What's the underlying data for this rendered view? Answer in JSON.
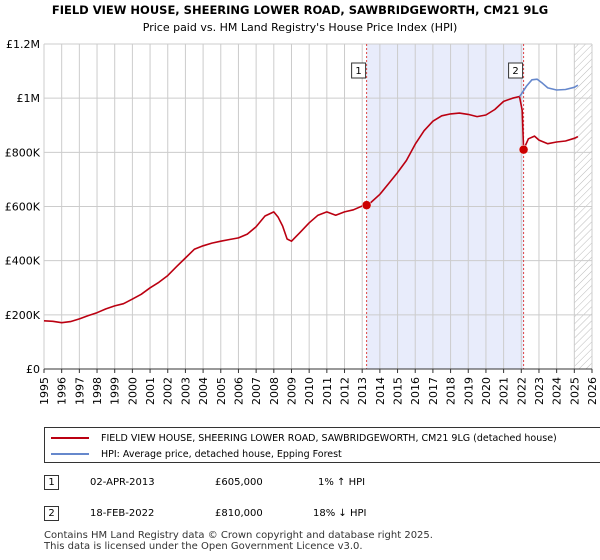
{
  "chart_data": {
    "type": "line",
    "title": "FIELD VIEW HOUSE, SHEERING LOWER ROAD, SAWBRIDGEWORTH, CM21 9LG",
    "subtitle": "Price paid vs. HM Land Registry's House Price Index (HPI)",
    "xlabel": "",
    "ylabel": "",
    "xlim": [
      1995,
      2026
    ],
    "ylim": [
      0,
      1200000
    ],
    "x_ticks": [
      1995,
      1996,
      1997,
      1998,
      1999,
      2000,
      2001,
      2002,
      2003,
      2004,
      2005,
      2006,
      2007,
      2008,
      2009,
      2010,
      2011,
      2012,
      2013,
      2014,
      2015,
      2016,
      2017,
      2018,
      2019,
      2020,
      2021,
      2022,
      2023,
      2024,
      2025,
      2026
    ],
    "y_ticks": [
      {
        "value": 0,
        "label": "£0"
      },
      {
        "value": 200000,
        "label": "£200K"
      },
      {
        "value": 400000,
        "label": "£400K"
      },
      {
        "value": 600000,
        "label": "£600K"
      },
      {
        "value": 800000,
        "label": "£800K"
      },
      {
        "value": 1000000,
        "label": "£1M"
      },
      {
        "value": 1200000,
        "label": "£1.2M"
      }
    ],
    "shaded_region": {
      "from": 2013.25,
      "to": 2022.13,
      "color": "#e8ecfb"
    },
    "future_hatch_from": 2025.0,
    "series": [
      {
        "name": "FIELD VIEW HOUSE, SHEERING LOWER ROAD, SAWBRIDGEWORTH, CM21 9LG (detached house)",
        "color": "#bb0011",
        "points": [
          [
            1995.0,
            178000
          ],
          [
            1995.5,
            176000
          ],
          [
            1996.0,
            171000
          ],
          [
            1996.5,
            175000
          ],
          [
            1997.0,
            185000
          ],
          [
            1997.5,
            197000
          ],
          [
            1998.0,
            208000
          ],
          [
            1998.5,
            222000
          ],
          [
            1999.0,
            233000
          ],
          [
            1999.5,
            241000
          ],
          [
            2000.0,
            258000
          ],
          [
            2000.5,
            276000
          ],
          [
            2001.0,
            300000
          ],
          [
            2001.5,
            320000
          ],
          [
            2002.0,
            345000
          ],
          [
            2002.5,
            378000
          ],
          [
            2003.0,
            410000
          ],
          [
            2003.5,
            442000
          ],
          [
            2004.0,
            455000
          ],
          [
            2004.5,
            465000
          ],
          [
            2005.0,
            472000
          ],
          [
            2005.5,
            478000
          ],
          [
            2006.0,
            484000
          ],
          [
            2006.5,
            498000
          ],
          [
            2007.0,
            525000
          ],
          [
            2007.5,
            565000
          ],
          [
            2008.0,
            580000
          ],
          [
            2008.25,
            560000
          ],
          [
            2008.5,
            528000
          ],
          [
            2008.75,
            480000
          ],
          [
            2009.0,
            472000
          ],
          [
            2009.5,
            505000
          ],
          [
            2010.0,
            540000
          ],
          [
            2010.5,
            568000
          ],
          [
            2011.0,
            580000
          ],
          [
            2011.5,
            568000
          ],
          [
            2012.0,
            580000
          ],
          [
            2012.5,
            588000
          ],
          [
            2013.0,
            602000
          ],
          [
            2013.25,
            605000
          ],
          [
            2013.5,
            615000
          ],
          [
            2014.0,
            645000
          ],
          [
            2014.5,
            685000
          ],
          [
            2015.0,
            725000
          ],
          [
            2015.5,
            770000
          ],
          [
            2016.0,
            830000
          ],
          [
            2016.5,
            880000
          ],
          [
            2017.0,
            915000
          ],
          [
            2017.5,
            935000
          ],
          [
            2018.0,
            942000
          ],
          [
            2018.5,
            945000
          ],
          [
            2019.0,
            940000
          ],
          [
            2019.5,
            932000
          ],
          [
            2020.0,
            938000
          ],
          [
            2020.5,
            958000
          ],
          [
            2021.0,
            988000
          ],
          [
            2021.5,
            1000000
          ],
          [
            2021.9,
            1006000
          ],
          [
            2022.05,
            955000
          ],
          [
            2022.13,
            810000
          ],
          [
            2022.4,
            850000
          ],
          [
            2022.75,
            860000
          ],
          [
            2023.0,
            845000
          ],
          [
            2023.5,
            832000
          ],
          [
            2024.0,
            838000
          ],
          [
            2024.5,
            842000
          ],
          [
            2025.0,
            852000
          ],
          [
            2025.2,
            858000
          ]
        ]
      },
      {
        "name": "HPI: Average price, detached house, Epping Forest",
        "color": "#6688cc",
        "points": [
          [
            2021.9,
            1006000
          ],
          [
            2022.0,
            1015000
          ],
          [
            2022.3,
            1045000
          ],
          [
            2022.6,
            1068000
          ],
          [
            2022.9,
            1070000
          ],
          [
            2023.2,
            1055000
          ],
          [
            2023.5,
            1038000
          ],
          [
            2024.0,
            1030000
          ],
          [
            2024.5,
            1032000
          ],
          [
            2025.0,
            1040000
          ],
          [
            2025.2,
            1048000
          ]
        ]
      }
    ],
    "sales": [
      {
        "id": "1",
        "x": 2013.25,
        "y": 605000,
        "date": "02-APR-2013",
        "price": "£605,000",
        "hpi": "1% ↑ HPI"
      },
      {
        "id": "2",
        "x": 2022.13,
        "y": 810000,
        "date": "18-FEB-2022",
        "price": "£810,000",
        "hpi": "18% ↓ HPI"
      }
    ]
  },
  "legend": {
    "entries": [
      {
        "label": "FIELD VIEW HOUSE, SHEERING LOWER ROAD, SAWBRIDGEWORTH, CM21 9LG (detached house)",
        "color": "#bb0011"
      },
      {
        "label": "HPI: Average price, detached house, Epping Forest",
        "color": "#6688cc"
      }
    ]
  },
  "footer": {
    "line1": "Contains HM Land Registry data © Crown copyright and database right 2025.",
    "line2": "This data is licensed under the Open Government Licence v3.0."
  }
}
